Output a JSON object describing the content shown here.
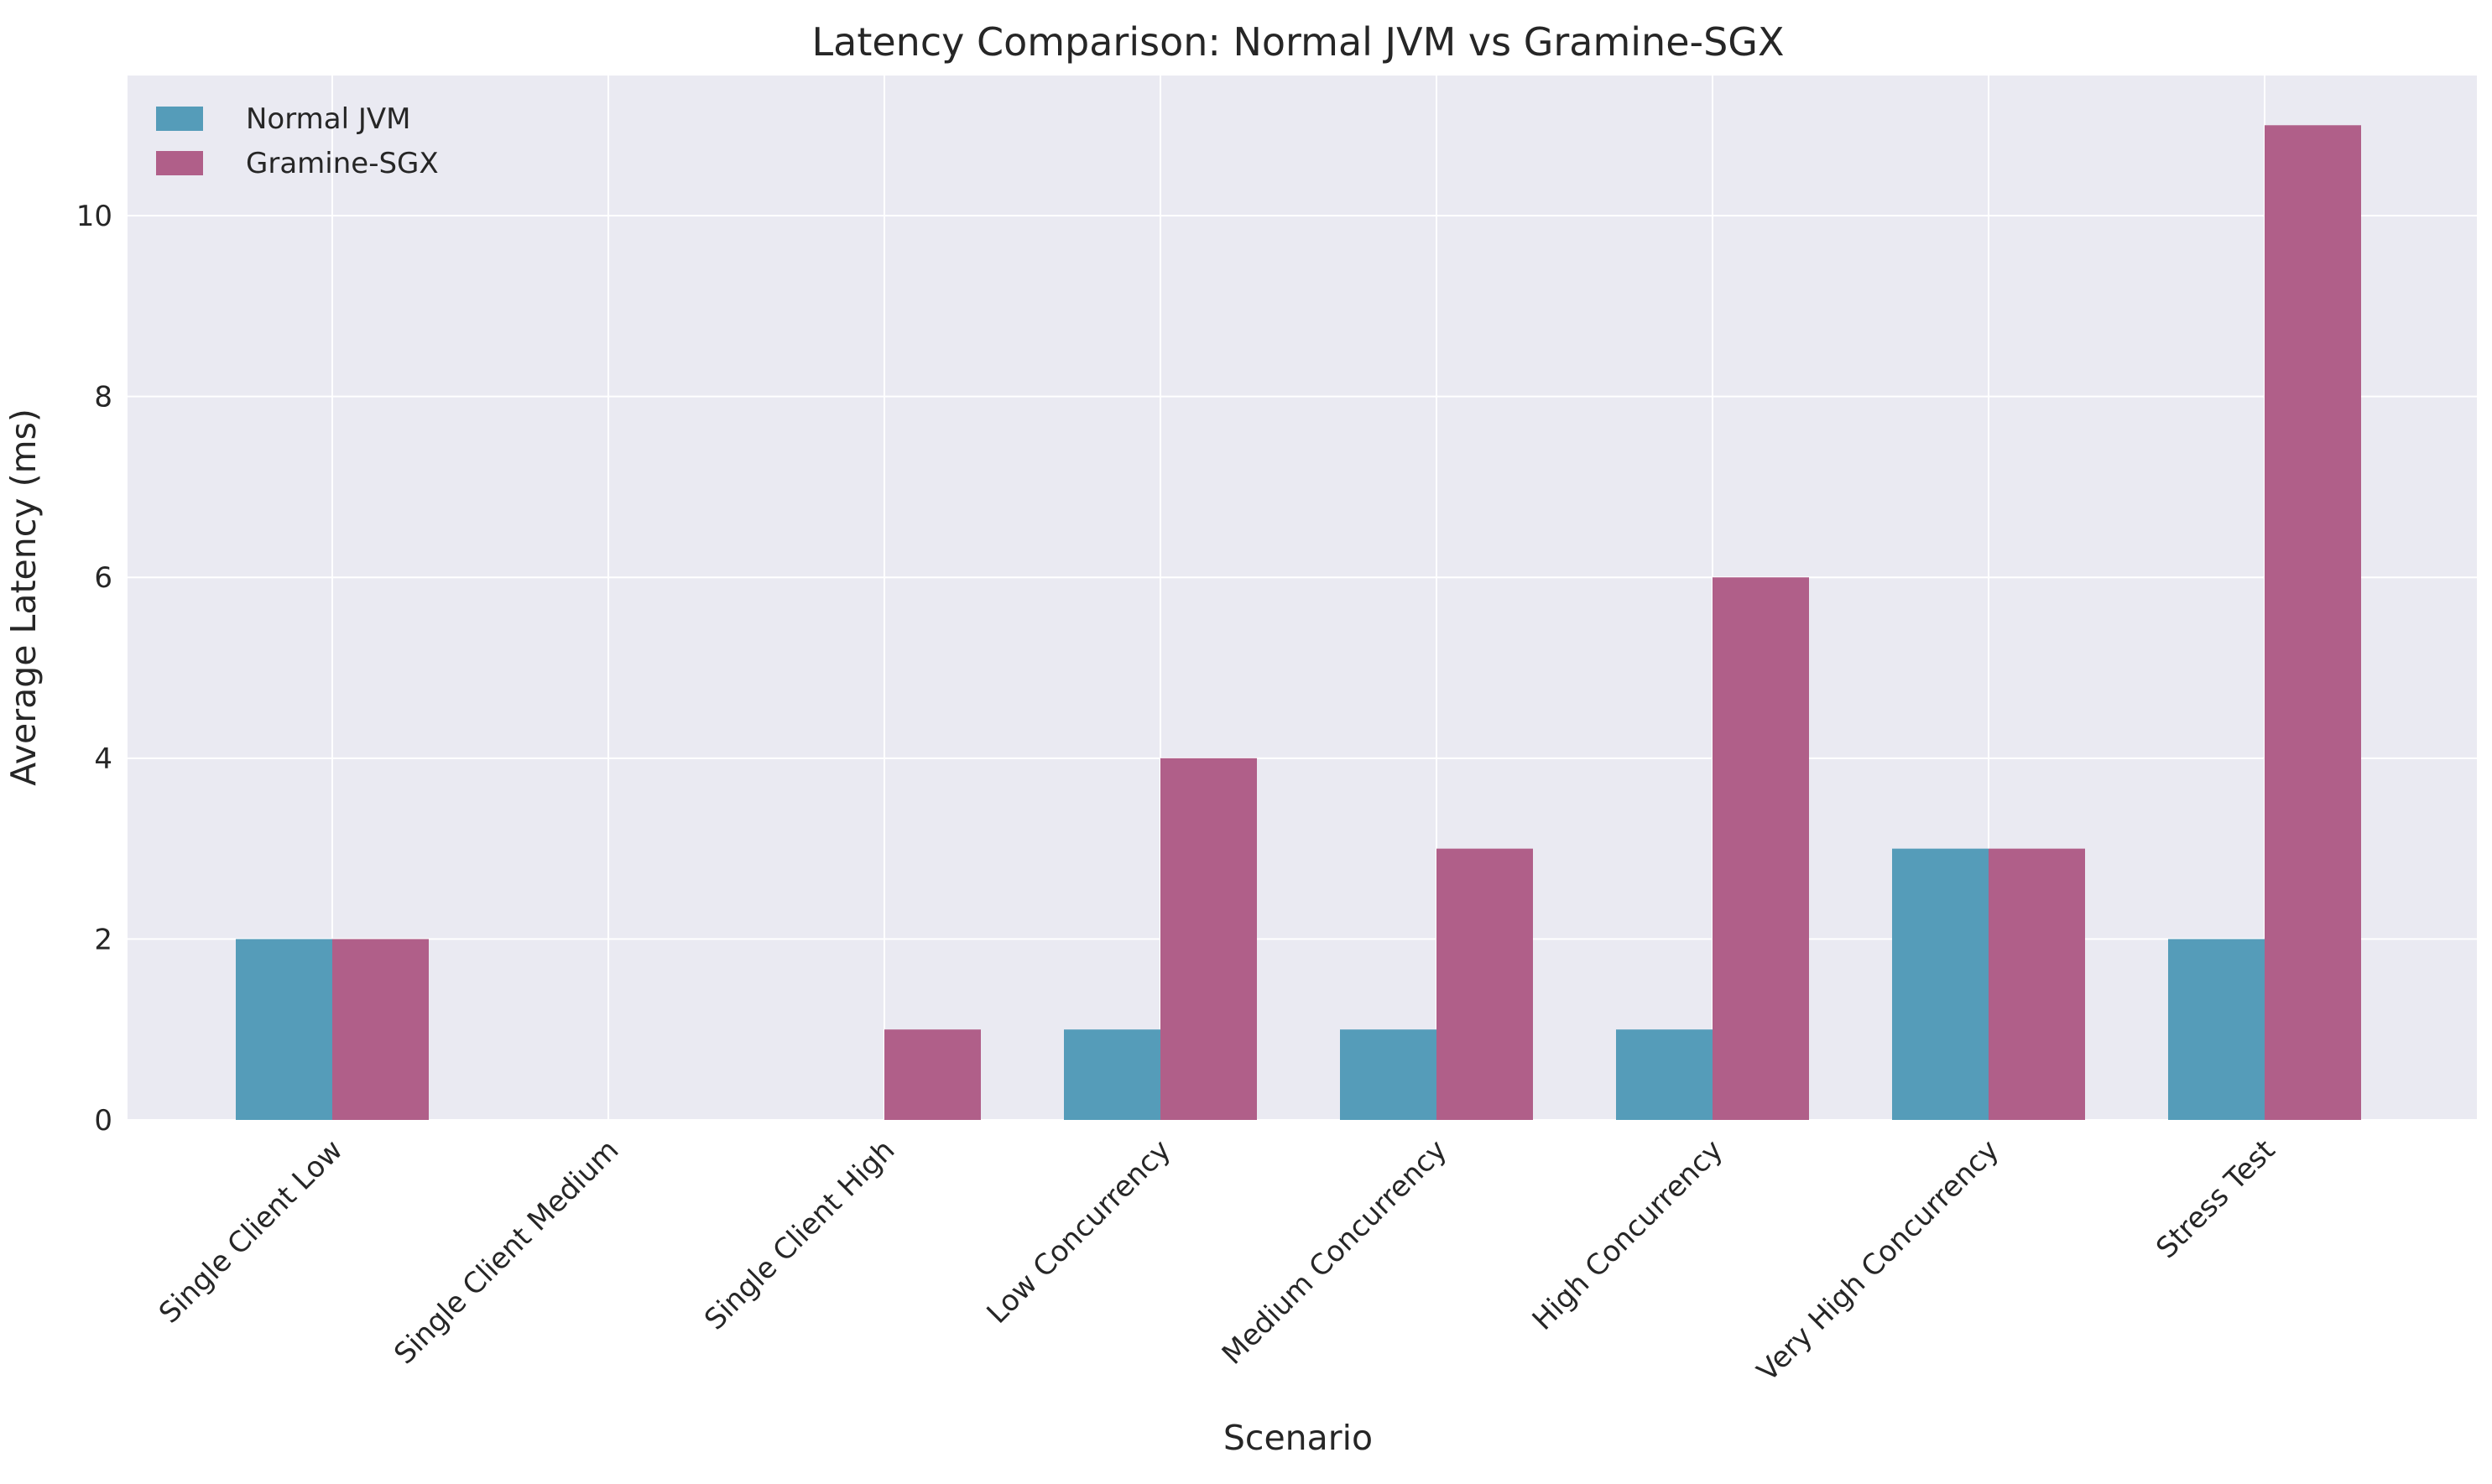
{
  "chart_data": {
    "type": "bar",
    "title": "Latency Comparison: Normal JVM vs Gramine-SGX",
    "xlabel": "Scenario",
    "ylabel": "Average Latency (ms)",
    "categories": [
      "Single Client Low",
      "Single Client Medium",
      "Single Client High",
      "Low Concurrency",
      "Medium Concurrency",
      "High Concurrency",
      "Very High Concurrency",
      "Stress Test"
    ],
    "series": [
      {
        "name": "Normal JVM",
        "color": "#559cb9",
        "values": [
          2,
          0,
          0,
          1,
          1,
          1,
          3,
          2
        ]
      },
      {
        "name": "Gramine-SGX",
        "color": "#b05f89",
        "values": [
          2,
          0,
          1,
          4,
          3,
          6,
          3,
          11
        ]
      }
    ],
    "ylim": [
      0,
      11.55
    ],
    "yticks": [
      "0",
      "2",
      "4",
      "6",
      "8",
      "10"
    ],
    "grid": true,
    "legend_position": "upper-left",
    "background": "#eaeaf2"
  }
}
